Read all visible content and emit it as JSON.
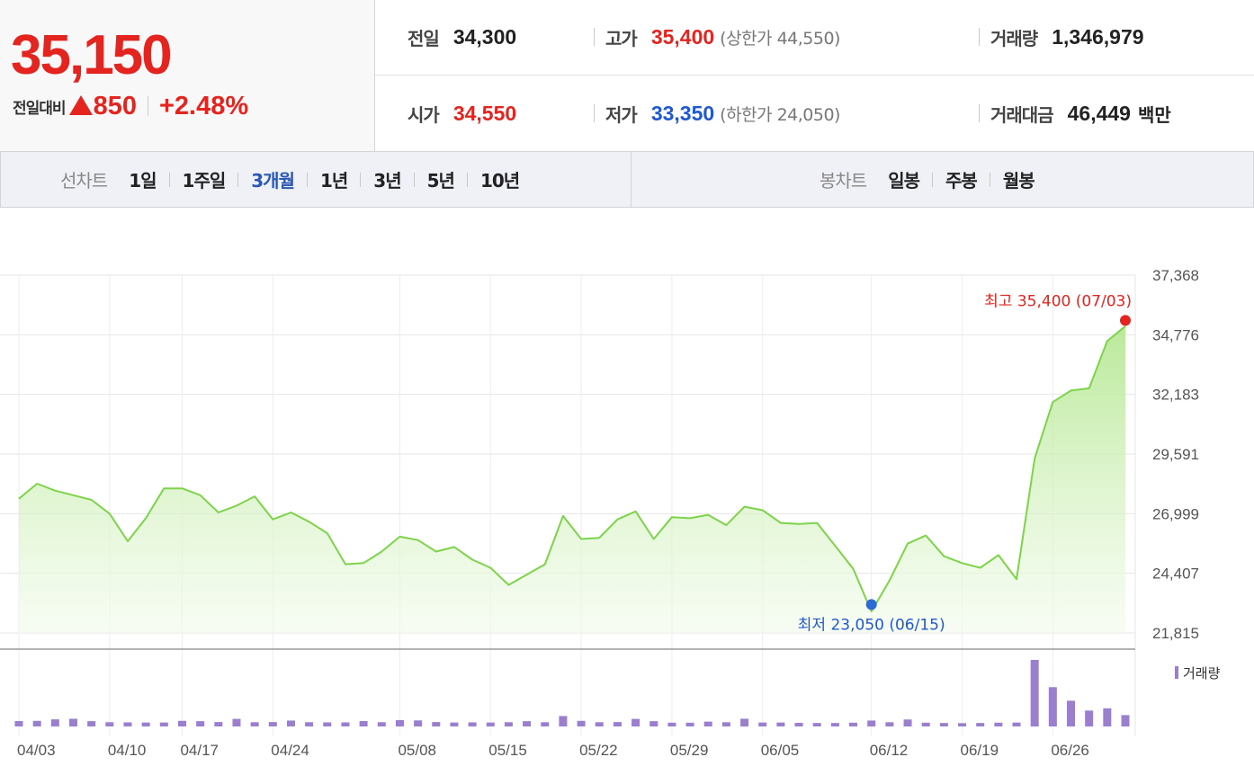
{
  "price": {
    "current": "35,150",
    "change_label": "전일대비",
    "change_amount": "850",
    "change_percent": "+2.48%",
    "direction_icon": "up-triangle-icon",
    "color_up": "#e3241f",
    "color_down": "#1f59cf"
  },
  "stats": {
    "prev_close": {
      "label": "전일",
      "value": "34,300"
    },
    "high": {
      "label": "고가",
      "value": "35,400",
      "limit": "(상한가 44,550)"
    },
    "volume": {
      "label": "거래량",
      "value": "1,346,979"
    },
    "open": {
      "label": "시가",
      "value": "34,550"
    },
    "low": {
      "label": "저가",
      "value": "33,350",
      "limit": "(하한가 24,050)"
    },
    "trade_value": {
      "label": "거래대금",
      "value": "46,449",
      "unit": "백만"
    }
  },
  "period_bar": {
    "line_title": "선차트",
    "line_options": [
      "1일",
      "1주일",
      "3개월",
      "1년",
      "3년",
      "5년",
      "10년"
    ],
    "active_line_option": "3개월",
    "candle_title": "봉차트",
    "candle_options": [
      "일봉",
      "주봉",
      "월봉"
    ]
  },
  "chart_data": {
    "type": "area",
    "title": "",
    "xlabel": "",
    "ylabel": "",
    "accent_color": "#7dd44a",
    "grid": true,
    "yticks": [
      21815,
      24407,
      26999,
      29591,
      32183,
      34776,
      37368
    ],
    "ylim": [
      21815,
      37368
    ],
    "xtick_labels": [
      "04/03",
      "04/10",
      "04/17",
      "04/24",
      "05/08",
      "05/15",
      "05/22",
      "05/29",
      "06/05",
      "06/12",
      "06/19",
      "06/26"
    ],
    "xtick_positions": [
      0,
      5,
      9,
      14,
      21,
      26,
      31,
      36,
      41,
      47,
      52,
      57
    ],
    "n_points": 62,
    "series": [
      {
        "values": [
          27650,
          28300,
          28000,
          27800,
          27600,
          27000,
          25800,
          26800,
          28100,
          28100,
          27800,
          27050,
          27350,
          27750,
          26750,
          27050,
          26650,
          26150,
          24800,
          24850,
          25350,
          26000,
          25850,
          25350,
          25550,
          25000,
          24650,
          23900,
          24350,
          24800,
          26900,
          25900,
          25950,
          26750,
          27100,
          25900,
          26850,
          26800,
          26950,
          26500,
          27300,
          27150,
          26600,
          26550,
          26600,
          25600,
          24600,
          22750,
          24100,
          25700,
          26050,
          25150,
          24850,
          24650,
          25200,
          24150,
          29400,
          31850,
          32350,
          32450,
          34500,
          35150
        ]
      }
    ],
    "annotations": {
      "high": {
        "text": "최고 35,400 (07/03)",
        "value": 35400
      },
      "low": {
        "text": "최저 23,050 (06/15)",
        "value": 23050
      }
    },
    "volume": {
      "legend": "거래량",
      "color": "#9a7fcf",
      "values": [
        3.6,
        3.7,
        4.7,
        5.1,
        3.5,
        2.8,
        2.7,
        2.6,
        2.6,
        3.7,
        3.5,
        2.9,
        5.0,
        2.8,
        2.9,
        3.9,
        2.8,
        2.7,
        2.7,
        3.6,
        2.8,
        4.2,
        4.0,
        2.9,
        2.6,
        2.7,
        2.6,
        2.8,
        3.5,
        2.8,
        6.9,
        3.7,
        2.8,
        2.9,
        5.0,
        3.5,
        2.5,
        2.5,
        3.2,
        2.8,
        5.1,
        2.6,
        2.6,
        2.4,
        2.3,
        2.3,
        2.5,
        3.9,
        2.8,
        4.6,
        2.5,
        2.3,
        2.2,
        2.3,
        2.5,
        2.6,
        44.0,
        26.0,
        17.0,
        10.5,
        12.0,
        7.5
      ]
    }
  }
}
